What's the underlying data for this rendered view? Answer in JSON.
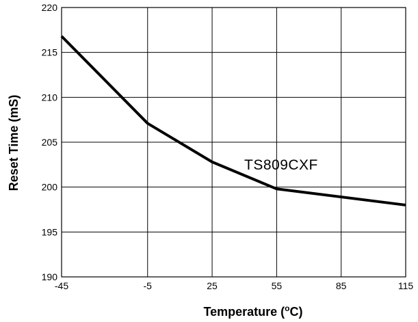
{
  "chart_data": {
    "type": "line",
    "xlabel_parts": [
      "Temperature (",
      "o",
      "C)"
    ],
    "ylabel": "Reset Time (mS)",
    "x_ticks": [
      "-45",
      "-5",
      "25",
      "55",
      "85",
      "115"
    ],
    "y_ticks": [
      "190",
      "195",
      "200",
      "205",
      "210",
      "215",
      "220"
    ],
    "xlim": [
      -45,
      115
    ],
    "ylim": [
      190,
      220
    ],
    "grid": true,
    "annotation": "TS809CXF",
    "series": [
      {
        "name": "TS809CXF",
        "x": [
          -45,
          -5,
          25,
          55,
          115
        ],
        "y": [
          216.8,
          207.1,
          202.8,
          199.8,
          198.0
        ]
      }
    ]
  },
  "colors": {
    "line": "#000000",
    "grid": "#000000",
    "background": "#ffffff"
  }
}
